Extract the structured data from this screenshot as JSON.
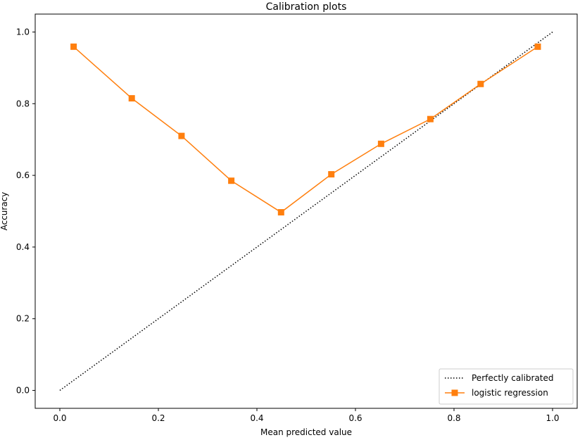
{
  "chart_data": {
    "type": "line",
    "title": "Calibration plots",
    "xlabel": "Mean predicted value",
    "ylabel": "Accuracy",
    "xlim": [
      -0.05,
      1.05
    ],
    "ylim": [
      -0.05,
      1.05
    ],
    "xticks": [
      "0.0",
      "0.2",
      "0.4",
      "0.6",
      "0.8",
      "1.0"
    ],
    "yticks": [
      "0.0",
      "0.2",
      "0.4",
      "0.6",
      "0.8",
      "1.0"
    ],
    "grid": false,
    "legend_position": "bottom-right",
    "series": [
      {
        "name": "Perfectly calibrated",
        "style": "dotted",
        "color": "#000000",
        "marker": "none",
        "x": [
          0.0,
          1.0
        ],
        "y": [
          0.0,
          1.0
        ]
      },
      {
        "name": "logistic regression",
        "style": "solid",
        "color": "#ff7f0e",
        "marker": "square",
        "x": [
          0.028,
          0.146,
          0.247,
          0.348,
          0.449,
          0.551,
          0.652,
          0.752,
          0.854,
          0.97
        ],
        "y": [
          0.959,
          0.815,
          0.71,
          0.585,
          0.497,
          0.603,
          0.688,
          0.757,
          0.855,
          0.959
        ]
      }
    ]
  }
}
